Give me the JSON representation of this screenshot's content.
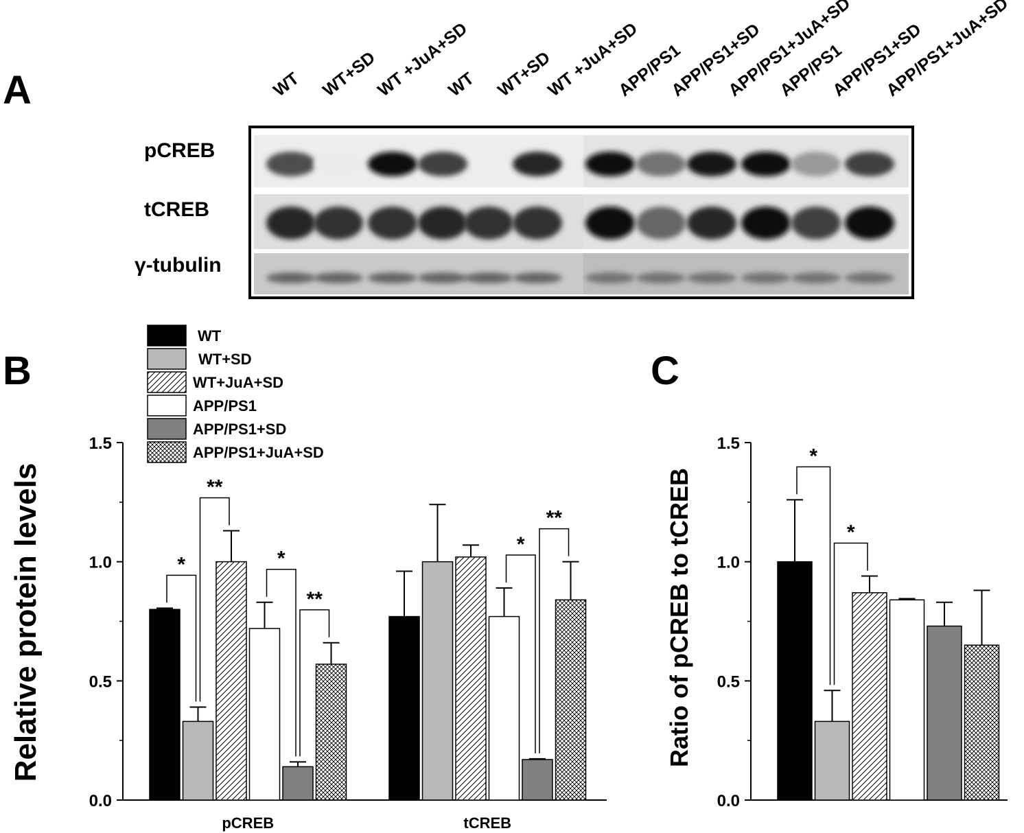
{
  "panels": {
    "a": "A",
    "b": "B",
    "c": "C"
  },
  "blot": {
    "lanes": [
      "WT",
      "WT+SD",
      "WT +JuA+SD",
      "WT",
      "WT+SD",
      "WT +JuA+SD",
      "APP/PS1",
      "APP/PS1+SD",
      "APP/PS1+JuA+SD",
      "APP/PS1",
      "APP/PS1+SD",
      "APP/PS1+JuA+SD"
    ],
    "rows": [
      "pCREB",
      "tCREB",
      "γ-tubulin"
    ],
    "band_intensity": {
      "pCREB": [
        0.7,
        0.08,
        0.95,
        0.75,
        0.0,
        0.85,
        0.95,
        0.55,
        0.9,
        0.95,
        0.4,
        0.75
      ],
      "tCREB": [
        0.85,
        0.8,
        0.8,
        0.85,
        0.8,
        0.8,
        0.95,
        0.6,
        0.85,
        0.95,
        0.75,
        0.95
      ],
      "γ-tubulin": [
        0.6,
        0.6,
        0.6,
        0.6,
        0.6,
        0.6,
        0.55,
        0.55,
        0.55,
        0.55,
        0.55,
        0.55
      ]
    }
  },
  "legend": {
    "items": [
      {
        "label": "WT",
        "fill": "black"
      },
      {
        "label": "WT+SD",
        "fill": "lightgray"
      },
      {
        "label": "WT+JuA+SD",
        "fill": "hatch"
      },
      {
        "label": "APP/PS1",
        "fill": "white"
      },
      {
        "label": "APP/PS1+SD",
        "fill": "darkgray"
      },
      {
        "label": "APP/PS1+JuA+SD",
        "fill": "crosshatch"
      }
    ]
  },
  "chart_data": [
    {
      "type": "bar",
      "ylabel": "Relative protein levels",
      "ylim": [
        0,
        1.5
      ],
      "yticks": [
        "0.0",
        "0.5",
        "1.0",
        "1.5"
      ],
      "categories": [
        "pCREB",
        "tCREB"
      ],
      "series": [
        {
          "name": "WT",
          "values": [
            0.8,
            0.77
          ],
          "errors": [
            0.005,
            0.19
          ]
        },
        {
          "name": "WT+SD",
          "values": [
            0.33,
            1.0
          ],
          "errors": [
            0.06,
            0.24
          ]
        },
        {
          "name": "WT+JuA+SD",
          "values": [
            1.0,
            1.02
          ],
          "errors": [
            0.13,
            0.05
          ]
        },
        {
          "name": "APP/PS1",
          "values": [
            0.72,
            0.77
          ],
          "errors": [
            0.11,
            0.12
          ]
        },
        {
          "name": "APP/PS1+SD",
          "values": [
            0.14,
            0.17
          ],
          "errors": [
            0.02,
            0.003
          ]
        },
        {
          "name": "APP/PS1+JuA+SD",
          "values": [
            0.57,
            0.84
          ],
          "errors": [
            0.09,
            0.16
          ]
        }
      ],
      "significance": [
        {
          "group": 0,
          "from": 0,
          "to": 1,
          "label": "*"
        },
        {
          "group": 0,
          "from": 1,
          "to": 2,
          "label": "**"
        },
        {
          "group": 0,
          "from": 3,
          "to": 4,
          "label": "*"
        },
        {
          "group": 0,
          "from": 4,
          "to": 5,
          "label": "**"
        },
        {
          "group": 1,
          "from": 3,
          "to": 4,
          "label": "*"
        },
        {
          "group": 1,
          "from": 4,
          "to": 5,
          "label": "**"
        }
      ]
    },
    {
      "type": "bar",
      "ylabel": "Ratio of pCREB to tCREB",
      "ylim": [
        0,
        1.5
      ],
      "yticks": [
        "0.0",
        "0.5",
        "1.0",
        "1.5"
      ],
      "categories": [
        "WT",
        "WT+SD",
        "WT+JuA+SD",
        "APP/PS1",
        "APP/PS1+SD",
        "APP/PS1+JuA+SD"
      ],
      "values": [
        1.0,
        0.33,
        0.87,
        0.84,
        0.73,
        0.65
      ],
      "errors": [
        0.26,
        0.13,
        0.07,
        0.005,
        0.1,
        0.23
      ],
      "significance": [
        {
          "from": 0,
          "to": 1,
          "label": "*"
        },
        {
          "from": 1,
          "to": 2,
          "label": "*"
        }
      ]
    }
  ]
}
